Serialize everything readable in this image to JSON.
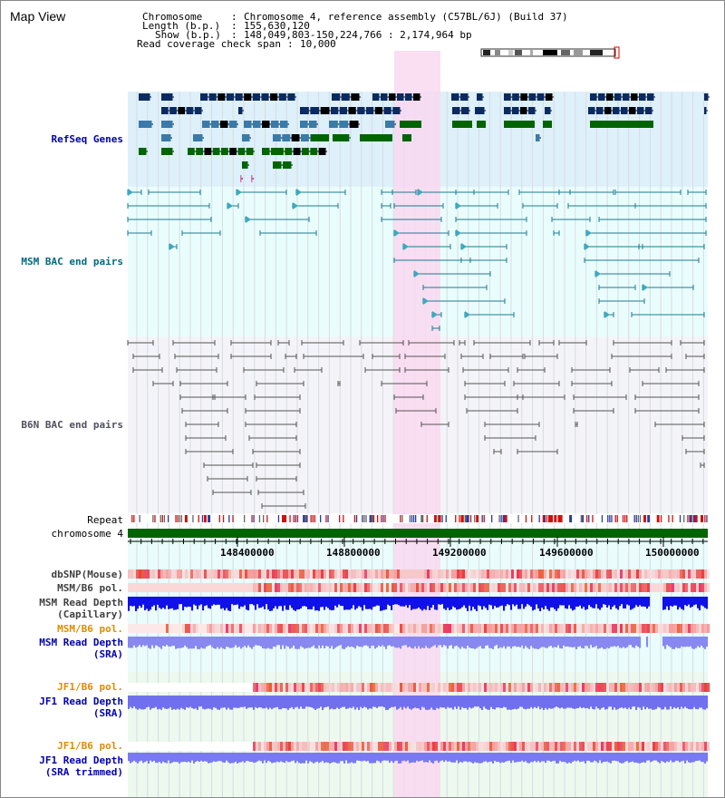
{
  "title": "Map View",
  "header": {
    "chromosome_label": "Chromosome",
    "chromosome_value": "Chromosome 4, reference assembly (C57BL/6J) (Build 37)",
    "length_label": "Length (b.p.)",
    "length_value": "155,630,120",
    "show_label": "Show (b.p.)",
    "show_value": "148,049,803-150,224,766 : 2,174,964 bp",
    "coverage_label": "Read coverage check span",
    "coverage_value": "10,000"
  },
  "tracks": {
    "refseq": "RefSeq Genes",
    "msm_bac": "MSM BAC end pairs",
    "b6n_bac": "B6N BAC end pairs",
    "repeat": "Repeat",
    "chromosome": "chromosome 4",
    "dbsnp": "dbSNP(Mouse)",
    "msm_pol_cap": "MSM/B6 pol.",
    "msm_depth_cap": "MSM Read Depth\n(Capillary)",
    "msm_pol_sra": "MSM/B6 pol.",
    "msm_depth_sra": "MSM Read Depth\n(SRA)",
    "jf1_pol_sra": "JF1/B6 pol.",
    "jf1_depth_sra": "JF1 Read Depth\n(SRA)",
    "jf1_pol_trim": "JF1/B6 pol.",
    "jf1_depth_trim": "JF1 Read Depth\n(SRA trimmed)"
  },
  "axis": {
    "ticks": [
      "148400000",
      "148800000",
      "149200000",
      "149600000",
      "150000000"
    ]
  },
  "colors": {
    "refseq_bg": "#def0fa",
    "msm_bac_bg": "#eafdfd",
    "b6n_bac_bg": "#f4f4f8",
    "highlight": "#f9d8f0",
    "chromosome": "#006400",
    "label_blue": "#0000b0",
    "label_teal": "#006a80",
    "label_orange": "#e08c00",
    "label_gray": "#404040"
  }
}
